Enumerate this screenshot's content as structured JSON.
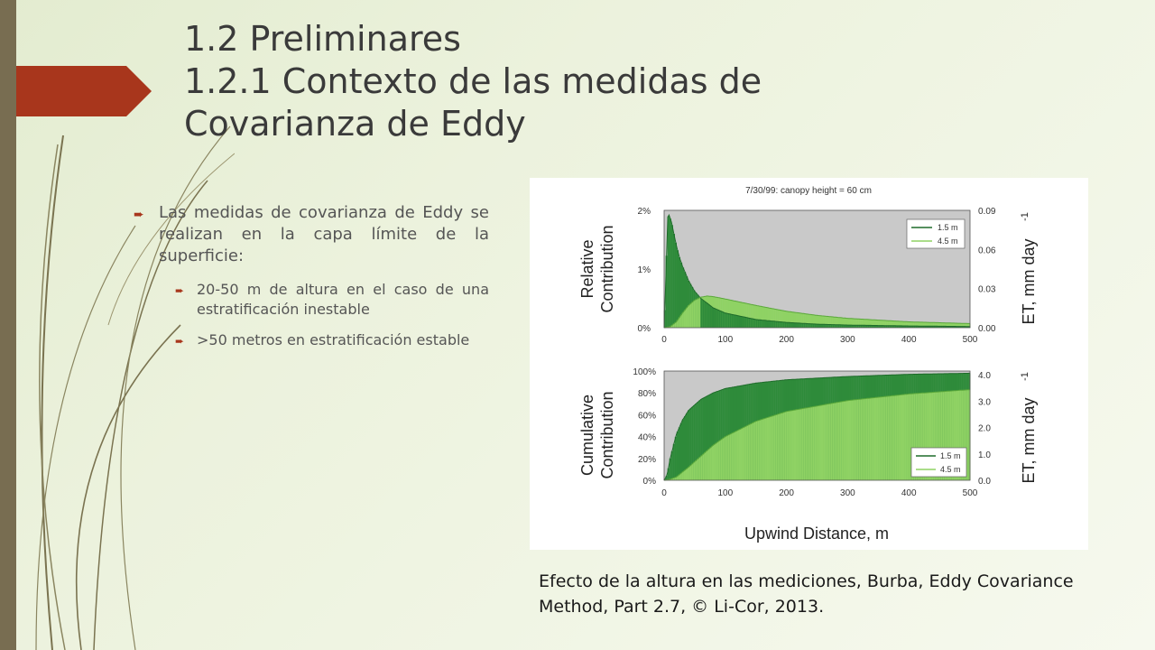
{
  "slide": {
    "title_lines": [
      "1.2 Preliminares",
      "1.2.1 Contexto de las medidas de",
      "Covarianza de Eddy"
    ],
    "bullets": [
      {
        "text": "Las medidas de covarianza de Eddy se realizan en la capa límite de la superficie:",
        "icon": "arrow-bullet-icon"
      },
      {
        "text": "20-50 m de altura en el caso de una estratificación inestable",
        "icon": "arrow-bullet-icon"
      },
      {
        "text": ">50 metros en estratificación estable",
        "icon": "arrow-bullet-icon"
      }
    ],
    "caption": "Efecto de la altura en las mediciones, Burba, Eddy Covariance Method, Part 2.7, © Li-Cor, 2013.",
    "colors": {
      "accent_arrow": "#a8361c",
      "sidebar": "#786d51",
      "dark_green": "#2e8b3a",
      "light_green": "#8fd264"
    }
  },
  "figure": {
    "title": "7/30/99: canopy height = 60 cm",
    "xlabel": "Upwind Distance, m",
    "top_ylabel_left": [
      "Relative",
      "Contribution"
    ],
    "top_ylabel_right": "ET, mm day",
    "bottom_ylabel_left": [
      "Cumulative",
      "Contribution"
    ],
    "bottom_ylabel_right": "ET, mm day",
    "ylabel_right_exponent": "-1",
    "x_ticks": [
      "0",
      "100",
      "200",
      "300",
      "400",
      "500"
    ],
    "top_left_ticks": [
      "0%",
      "1%",
      "2%"
    ],
    "top_right_ticks": [
      "0.00",
      "0.03",
      "0.06",
      "0.09"
    ],
    "bottom_left_ticks": [
      "0%",
      "20%",
      "40%",
      "60%",
      "80%",
      "100%"
    ],
    "bottom_right_ticks": [
      "0.0",
      "1.0",
      "2.0",
      "3.0",
      "4.0"
    ],
    "legend": [
      "1.5 m",
      "4.5 m"
    ]
  },
  "chart_data": [
    {
      "type": "area",
      "title": "7/30/99: canopy height = 60 cm",
      "xlabel": "",
      "ylabel": "Relative Contribution",
      "xlim": [
        0,
        500
      ],
      "ylim": [
        0,
        2
      ],
      "series": [
        {
          "name": "1.5 m",
          "x": [
            0,
            3,
            6,
            8,
            12,
            16,
            20,
            25,
            30,
            40,
            50,
            60,
            80,
            100,
            150,
            200,
            250,
            300,
            400,
            500
          ],
          "values": [
            0,
            0.9,
            1.88,
            1.92,
            1.8,
            1.6,
            1.4,
            1.2,
            1.05,
            0.8,
            0.62,
            0.5,
            0.34,
            0.25,
            0.14,
            0.09,
            0.06,
            0.045,
            0.03,
            0.02
          ]
        },
        {
          "name": "4.5 m",
          "x": [
            0,
            10,
            20,
            30,
            40,
            50,
            60,
            70,
            80,
            100,
            150,
            200,
            250,
            300,
            400,
            500
          ],
          "values": [
            0,
            0.02,
            0.1,
            0.25,
            0.38,
            0.47,
            0.52,
            0.54,
            0.53,
            0.49,
            0.38,
            0.28,
            0.21,
            0.16,
            0.1,
            0.07
          ]
        }
      ]
    },
    {
      "type": "area",
      "title": "",
      "xlabel": "Upwind Distance, m",
      "ylabel": "Cumulative Contribution",
      "xlim": [
        0,
        500
      ],
      "ylim": [
        0,
        100
      ],
      "series": [
        {
          "name": "1.5 m",
          "x": [
            0,
            5,
            10,
            20,
            30,
            40,
            60,
            80,
            100,
            150,
            200,
            300,
            400,
            500
          ],
          "values": [
            0,
            5,
            20,
            42,
            55,
            64,
            74,
            80,
            84,
            89,
            92,
            95,
            97,
            98
          ]
        },
        {
          "name": "4.5 m",
          "x": [
            0,
            10,
            20,
            40,
            60,
            80,
            100,
            150,
            200,
            300,
            400,
            500
          ],
          "values": [
            0,
            1,
            3,
            12,
            22,
            32,
            40,
            54,
            63,
            73,
            79,
            83
          ]
        }
      ]
    }
  ]
}
